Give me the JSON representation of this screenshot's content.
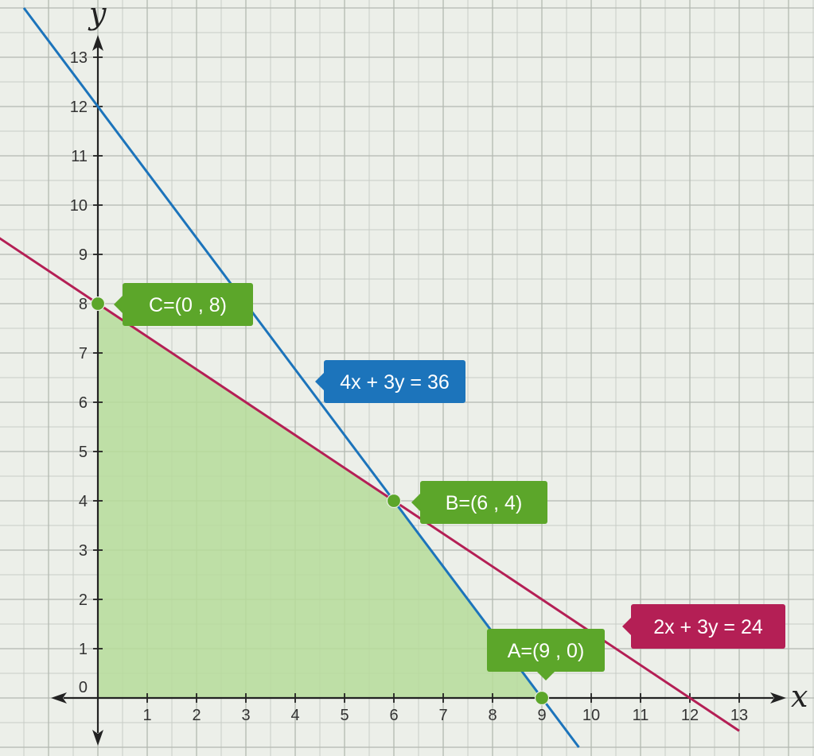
{
  "chart_data": {
    "type": "line",
    "xlabel": "x",
    "ylabel": "y",
    "xlim": [
      -1,
      14.1
    ],
    "ylim": [
      -1,
      14
    ],
    "grid": true,
    "x_ticks": [
      "1",
      "2",
      "3",
      "4",
      "5",
      "6",
      "7",
      "8",
      "9",
      "10",
      "11",
      "12",
      "13"
    ],
    "y_ticks": [
      "0",
      "1",
      "2",
      "3",
      "4",
      "5",
      "6",
      "7",
      "8",
      "9",
      "10",
      "11",
      "12",
      "13"
    ],
    "lines": [
      {
        "name": "4x + 3y = 36",
        "a": 4,
        "b": 3,
        "c": 36,
        "color": "#1c74bb"
      },
      {
        "name": "2x + 3y = 24",
        "a": 2,
        "b": 3,
        "c": 24,
        "color": "#b41f55"
      }
    ],
    "feasible_region": {
      "vertices": [
        [
          0,
          0
        ],
        [
          9,
          0
        ],
        [
          6,
          4
        ],
        [
          0,
          8
        ]
      ],
      "color": "#b6dc9a"
    },
    "points": [
      {
        "label": "A=(9 , 0)",
        "x": 9,
        "y": 0
      },
      {
        "label": "B=(6 , 4)",
        "x": 6,
        "y": 4
      },
      {
        "label": "C=(0 , 8)",
        "x": 0,
        "y": 8
      }
    ],
    "point_color": "#5ca62a"
  }
}
